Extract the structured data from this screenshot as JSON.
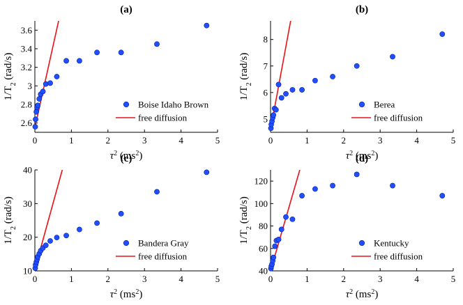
{
  "chart_data": [
    {
      "type": "scatter",
      "title": "(a)",
      "xlabel": "τ² (ms²)",
      "ylabel": "1/T₂ (rad/s)",
      "xlim": [
        0,
        5
      ],
      "ylim": [
        2.5,
        3.7
      ],
      "xticks": [
        "0",
        "1",
        "2",
        "3",
        "4",
        "5"
      ],
      "yticks": [
        2.6,
        2.8,
        3.0,
        3.2,
        3.4,
        3.6
      ],
      "ytick_labels": [
        "2.6",
        "2.8",
        "3",
        "3.2",
        "3.4",
        "3.6"
      ],
      "legend": [
        "Boise Idaho Brown",
        "free diffusion"
      ],
      "legend_position": "bottom-right",
      "series": [
        {
          "name": "Boise Idaho Brown",
          "marker": "circle",
          "color": "#1f4fff",
          "x": [
            0.01,
            0.02,
            0.04,
            0.06,
            0.08,
            0.12,
            0.16,
            0.22,
            0.3,
            0.42,
            0.6,
            0.86,
            1.22,
            1.7,
            2.36,
            3.34,
            4.7
          ],
          "y": [
            2.56,
            2.64,
            2.72,
            2.77,
            2.79,
            2.86,
            2.91,
            2.94,
            3.02,
            3.03,
            3.1,
            3.27,
            3.27,
            3.36,
            3.36,
            3.45,
            3.65
          ]
        },
        {
          "name": "free diffusion",
          "type": "line",
          "color": "#e8141a",
          "x": [
            0,
            0.65
          ],
          "y": [
            2.55,
            3.7
          ]
        }
      ]
    },
    {
      "type": "scatter",
      "title": "(b)",
      "xlabel": "τ² (ms²)",
      "ylabel": "1/T₂ (rad/s)",
      "xlim": [
        0,
        5
      ],
      "ylim": [
        4.5,
        8.7
      ],
      "xticks": [
        "0",
        "1",
        "2",
        "3",
        "4",
        "5"
      ],
      "yticks": [
        5,
        6,
        7,
        8
      ],
      "ytick_labels": [
        "5",
        "6",
        "7",
        "8"
      ],
      "legend": [
        "Berea",
        "free diffusion"
      ],
      "legend_position": "bottom-right",
      "series": [
        {
          "name": "Berea",
          "marker": "circle",
          "color": "#1f4fff",
          "x": [
            0.01,
            0.02,
            0.04,
            0.06,
            0.08,
            0.11,
            0.15,
            0.22,
            0.3,
            0.42,
            0.6,
            0.86,
            1.22,
            1.7,
            2.36,
            3.34,
            4.7
          ],
          "y": [
            4.65,
            4.8,
            4.92,
            5.05,
            5.15,
            5.4,
            5.35,
            6.3,
            5.8,
            5.95,
            6.1,
            6.1,
            6.45,
            6.6,
            7.0,
            7.35,
            8.2
          ]
        },
        {
          "name": "free diffusion",
          "type": "line",
          "color": "#e8141a",
          "x": [
            0,
            0.55
          ],
          "y": [
            4.6,
            8.7
          ]
        }
      ]
    },
    {
      "type": "scatter",
      "title": "(c)",
      "xlabel": "τ² (ms²)",
      "ylabel": "1/T₂ (rad/s)",
      "xlim": [
        0,
        5
      ],
      "ylim": [
        10,
        40
      ],
      "xticks": [
        "0",
        "1",
        "2",
        "3",
        "4",
        "5"
      ],
      "yticks": [
        10,
        20,
        30,
        40
      ],
      "ytick_labels": [
        "10",
        "20",
        "30",
        "40"
      ],
      "legend": [
        "Bandera Gray",
        "free diffusion"
      ],
      "legend_position": "bottom-right",
      "series": [
        {
          "name": "Bandera Gray",
          "marker": "circle",
          "color": "#1f4fff",
          "x": [
            0.01,
            0.02,
            0.04,
            0.06,
            0.08,
            0.12,
            0.16,
            0.22,
            0.3,
            0.42,
            0.6,
            0.86,
            1.22,
            1.7,
            2.36,
            3.34,
            4.7
          ],
          "y": [
            10.8,
            11.8,
            12.6,
            13.4,
            14.2,
            15.1,
            16.0,
            16.8,
            17.6,
            18.9,
            19.9,
            20.5,
            22.3,
            24.2,
            27.0,
            33.5,
            39.3
          ]
        },
        {
          "name": "free diffusion",
          "type": "line",
          "color": "#e8141a",
          "x": [
            0,
            0.75
          ],
          "y": [
            10.5,
            40
          ]
        }
      ]
    },
    {
      "type": "scatter",
      "title": "(d)",
      "xlabel": "τ² (ms²)",
      "ylabel": "1/T₂ (rad/s)",
      "xlim": [
        0,
        5
      ],
      "ylim": [
        40,
        130
      ],
      "xticks": [
        "0",
        "1",
        "2",
        "3",
        "4",
        "5"
      ],
      "yticks": [
        40,
        60,
        80,
        100,
        120
      ],
      "ytick_labels": [
        "40",
        "60",
        "80",
        "100",
        "120"
      ],
      "legend": [
        "Kentucky",
        "free diffusion"
      ],
      "legend_position": "bottom-right",
      "series": [
        {
          "name": "Kentucky",
          "marker": "circle",
          "color": "#1f4fff",
          "x": [
            0.01,
            0.02,
            0.04,
            0.06,
            0.08,
            0.12,
            0.16,
            0.22,
            0.3,
            0.42,
            0.6,
            0.86,
            1.22,
            1.7,
            2.36,
            3.34,
            4.7
          ],
          "y": [
            42,
            44,
            46,
            49,
            52,
            62,
            67,
            68,
            77,
            88,
            86,
            107,
            113,
            116,
            126,
            116,
            107
          ]
        },
        {
          "name": "free diffusion",
          "type": "line",
          "color": "#e8141a",
          "x": [
            0,
            0.8
          ],
          "y": [
            40,
            130
          ]
        }
      ]
    }
  ]
}
